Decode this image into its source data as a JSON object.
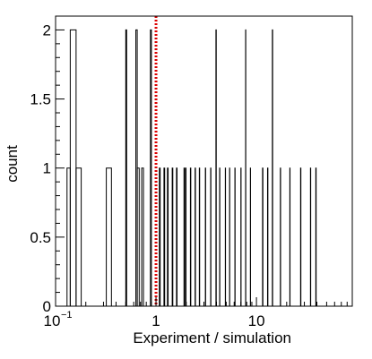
{
  "chart_data": {
    "type": "histogram",
    "xlabel": "Experiment / simulation",
    "ylabel": "count",
    "xscale": "log",
    "xlim": [
      0.1,
      90
    ],
    "ylim": [
      0,
      2.1
    ],
    "grid": false,
    "x_tick_labels": [
      {
        "value": 0.1,
        "base": "10",
        "exp": "−1"
      },
      {
        "value": 1,
        "label": "1"
      },
      {
        "value": 10,
        "label": "10"
      }
    ],
    "y_ticks": [
      0,
      0.5,
      1,
      1.5,
      2
    ],
    "y_tick_labels": [
      "0",
      "0.5",
      "1",
      "1.5",
      "2"
    ],
    "reference_line": {
      "x": 1,
      "color": "#dd0000",
      "style": "dotted"
    },
    "bins": [
      {
        "x0": 0.13,
        "x1": 0.14,
        "count": 1
      },
      {
        "x0": 0.14,
        "x1": 0.16,
        "count": 2
      },
      {
        "x0": 0.16,
        "x1": 0.18,
        "count": 1
      },
      {
        "x0": 0.32,
        "x1": 0.36,
        "count": 1
      },
      {
        "x0": 0.5,
        "x1": 0.51,
        "count": 2
      },
      {
        "x0": 0.63,
        "x1": 0.65,
        "count": 2
      },
      {
        "x0": 0.65,
        "x1": 0.68,
        "count": 1
      },
      {
        "x0": 0.72,
        "x1": 0.75,
        "count": 1
      },
      {
        "x0": 0.88,
        "x1": 0.9,
        "count": 2
      },
      {
        "x0": 1.08,
        "x1": 1.1,
        "count": 1
      },
      {
        "x0": 1.2,
        "x1": 1.22,
        "count": 1
      },
      {
        "x0": 1.3,
        "x1": 1.32,
        "count": 1
      },
      {
        "x0": 1.45,
        "x1": 1.47,
        "count": 1
      },
      {
        "x0": 1.6,
        "x1": 1.62,
        "count": 1
      },
      {
        "x0": 1.9,
        "x1": 1.92,
        "count": 1
      },
      {
        "x0": 1.97,
        "x1": 1.99,
        "count": 1
      },
      {
        "x0": 2.2,
        "x1": 2.22,
        "count": 1
      },
      {
        "x0": 2.45,
        "x1": 2.47,
        "count": 1
      },
      {
        "x0": 2.7,
        "x1": 2.72,
        "count": 1
      },
      {
        "x0": 3.1,
        "x1": 3.12,
        "count": 1
      },
      {
        "x0": 3.5,
        "x1": 3.52,
        "count": 1
      },
      {
        "x0": 3.95,
        "x1": 3.98,
        "count": 2
      },
      {
        "x0": 4.3,
        "x1": 4.32,
        "count": 1
      },
      {
        "x0": 4.9,
        "x1": 4.92,
        "count": 1
      },
      {
        "x0": 5.4,
        "x1": 5.42,
        "count": 1
      },
      {
        "x0": 6.1,
        "x1": 6.13,
        "count": 1
      },
      {
        "x0": 7.0,
        "x1": 7.03,
        "count": 1
      },
      {
        "x0": 7.8,
        "x1": 7.83,
        "count": 2
      },
      {
        "x0": 8.7,
        "x1": 8.73,
        "count": 1
      },
      {
        "x0": 11.5,
        "x1": 11.6,
        "count": 1
      },
      {
        "x0": 12.9,
        "x1": 13.0,
        "count": 1
      },
      {
        "x0": 14.4,
        "x1": 14.5,
        "count": 2
      },
      {
        "x0": 17.3,
        "x1": 17.4,
        "count": 1
      },
      {
        "x0": 21.5,
        "x1": 21.6,
        "count": 1
      },
      {
        "x0": 27.5,
        "x1": 27.7,
        "count": 1
      },
      {
        "x0": 34.5,
        "x1": 34.7,
        "count": 1
      },
      {
        "x0": 39.0,
        "x1": 39.3,
        "count": 1
      }
    ]
  }
}
